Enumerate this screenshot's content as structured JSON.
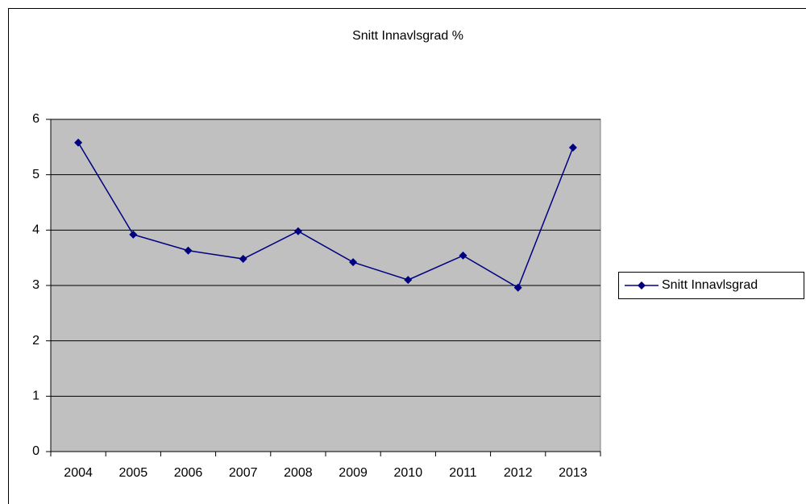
{
  "chart_data": {
    "type": "line",
    "title": "Snitt Innavlsgrad %",
    "categories": [
      "2004",
      "2005",
      "2006",
      "2007",
      "2008",
      "2009",
      "2010",
      "2011",
      "2012",
      "2013"
    ],
    "series": [
      {
        "name": "Snitt Innavlsgrad",
        "color": "#000080",
        "values": [
          5.58,
          3.92,
          3.63,
          3.48,
          3.98,
          3.42,
          3.1,
          3.54,
          2.96,
          5.49
        ]
      }
    ],
    "ylim": [
      0,
      6
    ],
    "yticks": [
      0,
      1,
      2,
      3,
      4,
      5,
      6
    ],
    "grid": true,
    "legend": "right"
  }
}
